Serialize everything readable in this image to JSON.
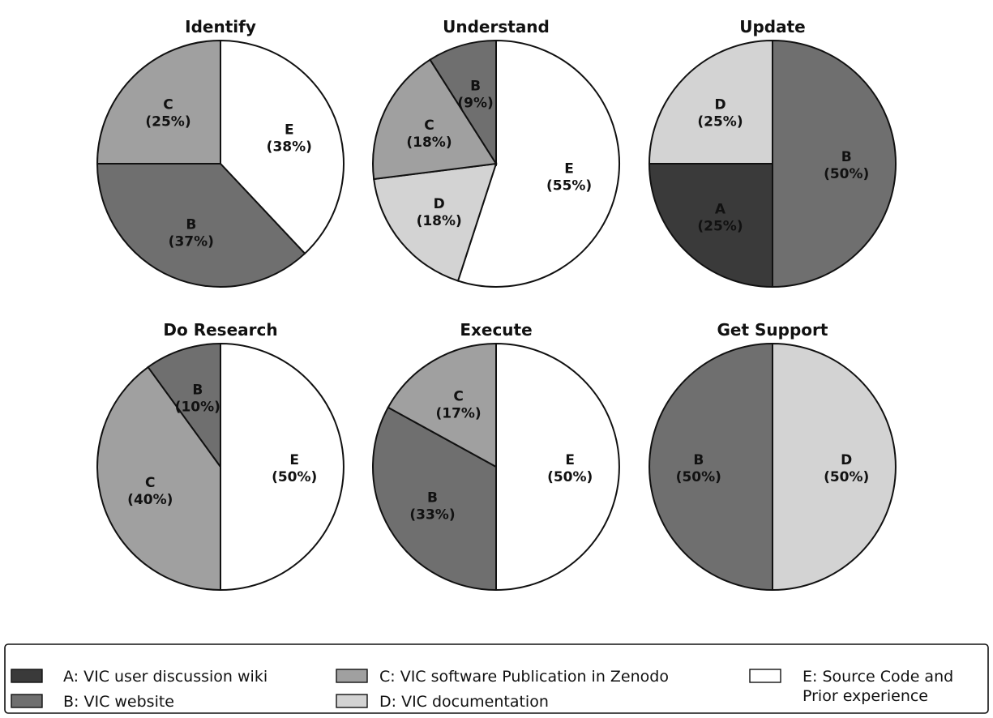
{
  "legend": {
    "items": [
      {
        "key": "A",
        "label": "A: VIC user discussion wiki",
        "color": "#3a3a3a"
      },
      {
        "key": "B",
        "label": "B: VIC website",
        "color": "#6f6f6f"
      },
      {
        "key": "C",
        "label": "C: VIC software Publication in Zenodo",
        "color": "#a0a0a0"
      },
      {
        "key": "D",
        "label": "D: VIC documentation",
        "color": "#d3d3d3"
      },
      {
        "key": "E",
        "label": "E: Source Code and",
        "label_line2": "Prior experience",
        "color": "#ffffff"
      }
    ]
  },
  "chart_data": [
    {
      "type": "pie",
      "title": "Identify",
      "slices": [
        {
          "key": "E",
          "value": 38,
          "label": "E",
          "pct": "(38%)"
        },
        {
          "key": "B",
          "value": 37,
          "label": "B",
          "pct": "(37%)"
        },
        {
          "key": "C",
          "value": 25,
          "label": "C",
          "pct": "(25%)"
        }
      ]
    },
    {
      "type": "pie",
      "title": "Understand",
      "slices": [
        {
          "key": "E",
          "value": 55,
          "label": "E",
          "pct": "(55%)"
        },
        {
          "key": "D",
          "value": 18,
          "label": "D",
          "pct": "(18%)"
        },
        {
          "key": "C",
          "value": 18,
          "label": "C",
          "pct": "(18%)"
        },
        {
          "key": "B",
          "value": 9,
          "label": "B",
          "pct": "(9%)"
        }
      ]
    },
    {
      "type": "pie",
      "title": "Update",
      "slices": [
        {
          "key": "B",
          "value": 50,
          "label": "B",
          "pct": "(50%)"
        },
        {
          "key": "A",
          "value": 25,
          "label": "A",
          "pct": "(25%)"
        },
        {
          "key": "D",
          "value": 25,
          "label": "D",
          "pct": "(25%)"
        }
      ]
    },
    {
      "type": "pie",
      "title": "Do Research",
      "slices": [
        {
          "key": "E",
          "value": 50,
          "label": "E",
          "pct": "(50%)"
        },
        {
          "key": "C",
          "value": 40,
          "label": "C",
          "pct": "(40%)"
        },
        {
          "key": "B",
          "value": 10,
          "label": "B",
          "pct": "(10%)"
        }
      ]
    },
    {
      "type": "pie",
      "title": "Execute",
      "slices": [
        {
          "key": "E",
          "value": 50,
          "label": "E",
          "pct": "(50%)"
        },
        {
          "key": "B",
          "value": 33,
          "label": "B",
          "pct": "(33%)"
        },
        {
          "key": "C",
          "value": 17,
          "label": "C",
          "pct": "(17%)"
        }
      ]
    },
    {
      "type": "pie",
      "title": "Get Support",
      "slices": [
        {
          "key": "D",
          "value": 50,
          "label": "D",
          "pct": "(50%)"
        },
        {
          "key": "B",
          "value": 50,
          "label": "B",
          "pct": "(50%)"
        }
      ]
    }
  ]
}
